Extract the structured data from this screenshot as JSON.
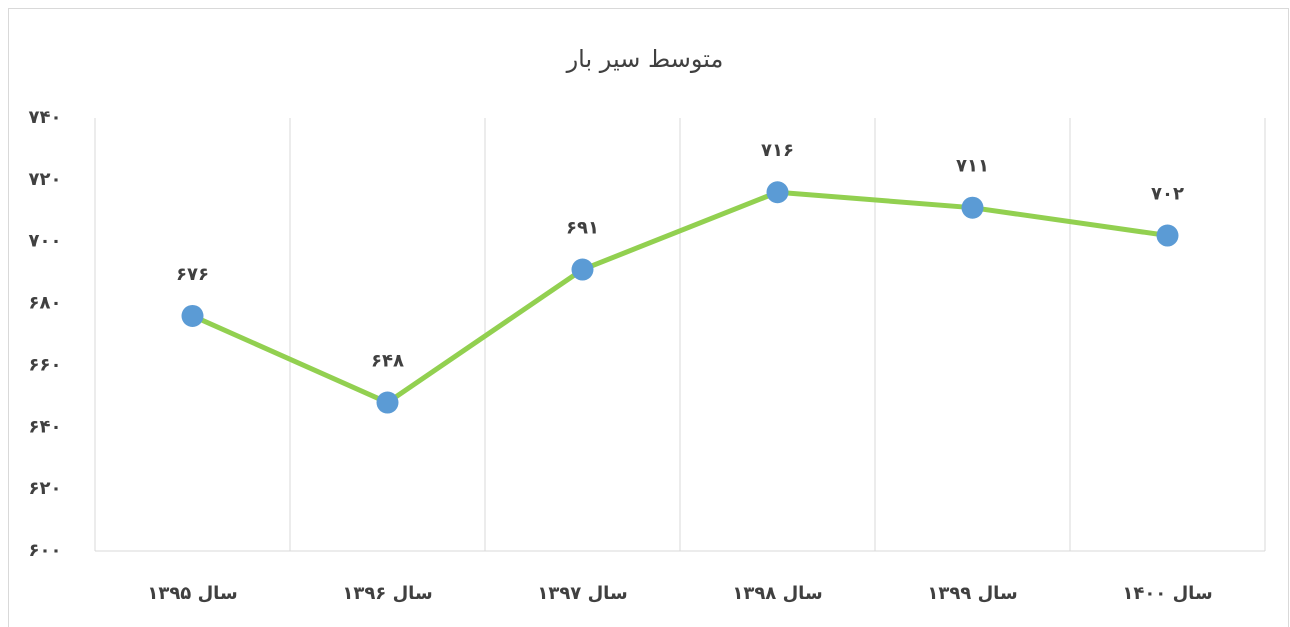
{
  "chart_data": {
    "type": "line",
    "title": "متوسط سیر بار",
    "categories": [
      "سال ۱۳۹۵",
      "سال ۱۳۹۶",
      "سال ۱۳۹۷",
      "سال ۱۳۹۸",
      "سال ۱۳۹۹",
      "سال ۱۴۰۰"
    ],
    "values": [
      676,
      648,
      691,
      716,
      711,
      702
    ],
    "value_labels": [
      "۶۷۶",
      "۶۴۸",
      "۶۹۱",
      "۷۱۶",
      "۷۱۱",
      "۷۰۲"
    ],
    "color": "#92d050",
    "marker_color": "#5b9bd5",
    "ylim": [
      600,
      740
    ],
    "yticks": [
      {
        "value": 600,
        "label": "۶۰۰"
      },
      {
        "value": 620,
        "label": "۶۲۰"
      },
      {
        "value": 640,
        "label": "۶۴۰"
      },
      {
        "value": 660,
        "label": "۶۶۰"
      },
      {
        "value": 680,
        "label": "۶۸۰"
      },
      {
        "value": 700,
        "label": "۷۰۰"
      },
      {
        "value": 720,
        "label": "۷۲۰"
      },
      {
        "value": 740,
        "label": "۷۴۰"
      }
    ],
    "grid": "x"
  }
}
